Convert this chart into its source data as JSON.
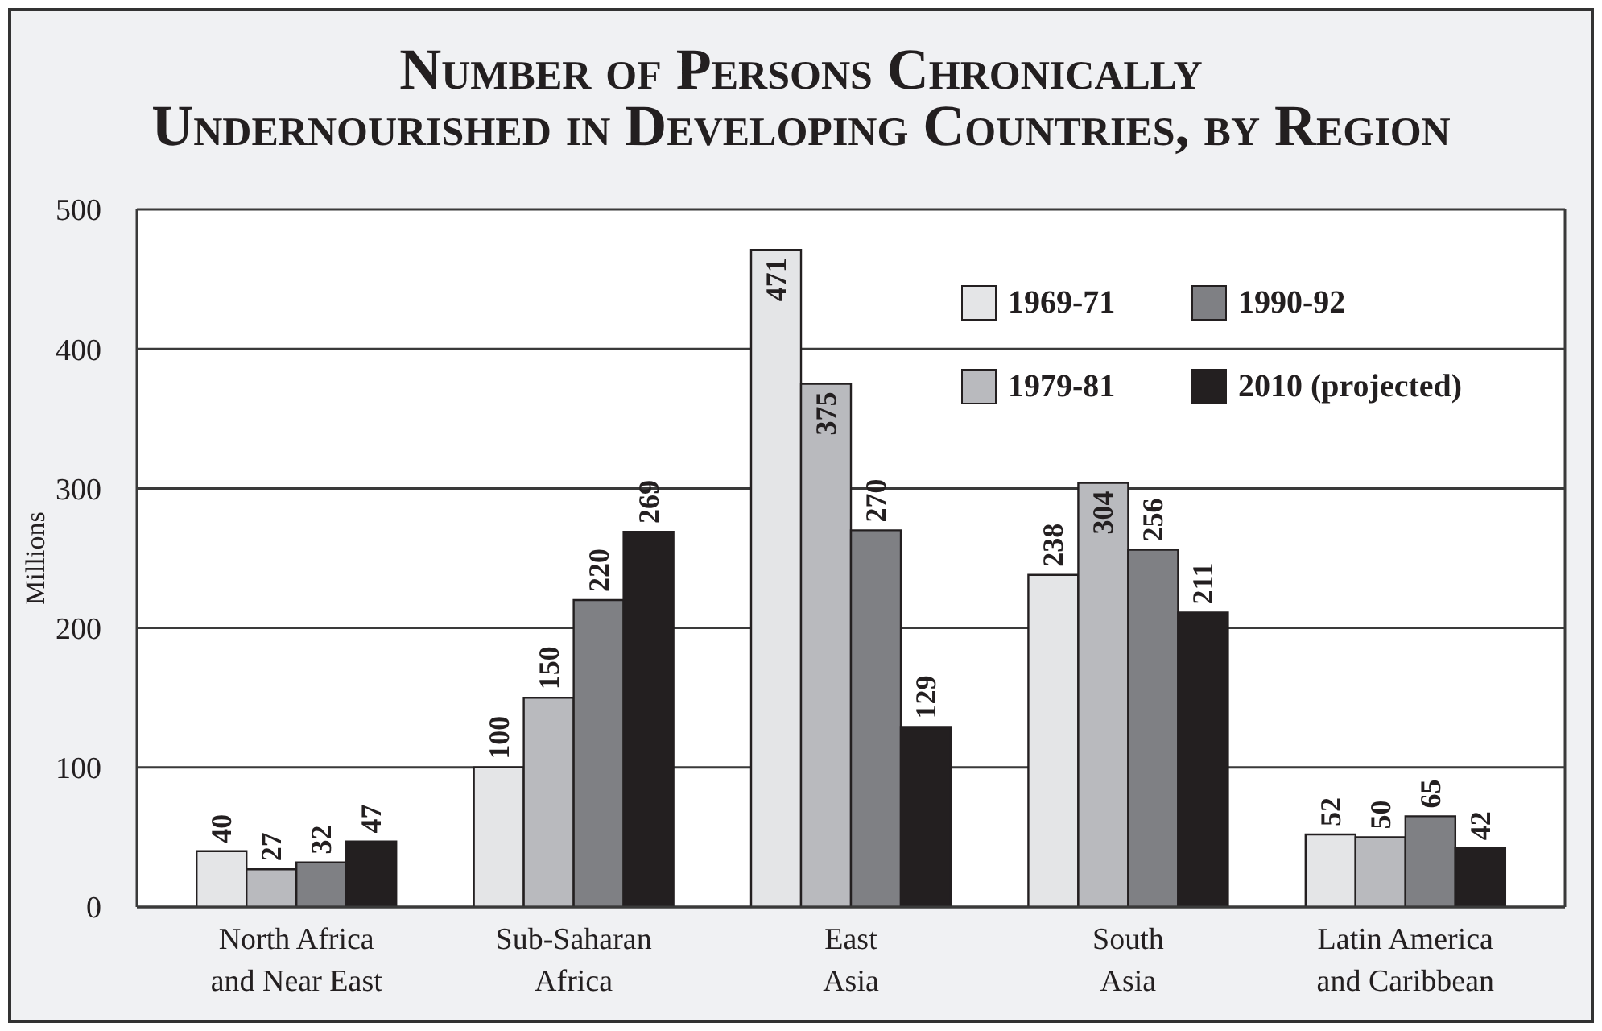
{
  "chart_data": {
    "type": "bar",
    "title": "Number of Persons Chronically\nUndernourished in Developing Countries, by Region",
    "ylabel": "Millions",
    "categories": [
      "North Africa\nand Near East",
      "Sub-Saharan\nAfrica",
      "East\nAsia",
      "South\nAsia",
      "Latin America\nand Caribbean"
    ],
    "series": [
      {
        "name": "1969-71",
        "color": "#e4e5e7",
        "values": [
          40,
          100,
          471,
          238,
          52
        ]
      },
      {
        "name": "1979-81",
        "color": "#b9babe",
        "values": [
          27,
          150,
          375,
          304,
          50
        ]
      },
      {
        "name": "1990-92",
        "color": "#7f8084",
        "values": [
          32,
          220,
          270,
          256,
          65
        ]
      },
      {
        "name": "2010 (projected)",
        "color": "#231f20",
        "values": [
          47,
          269,
          129,
          211,
          42
        ]
      }
    ],
    "ylim": [
      0,
      500
    ],
    "yticks": [
      0,
      100,
      200,
      300,
      400,
      500
    ],
    "grid": "y",
    "legend": "top right",
    "data_labels": true
  }
}
